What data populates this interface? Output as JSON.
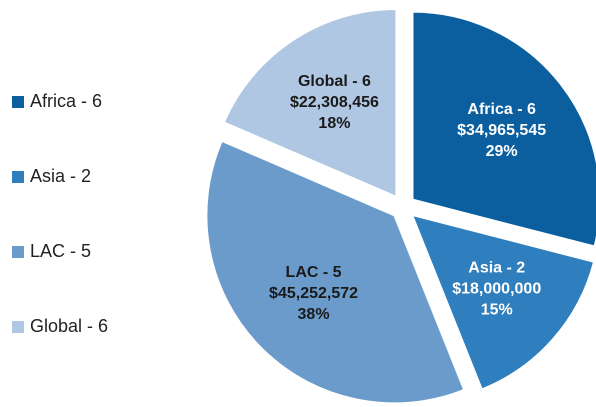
{
  "chart_data": {
    "type": "pie",
    "categories": [
      "Africa - 6",
      "Asia - 2",
      "LAC - 5",
      "Global - 6"
    ],
    "values": [
      34965545,
      18000000,
      45252572,
      22308456
    ],
    "value_labels": [
      "$34,965,545",
      "$18,000,000",
      "$45,252,572",
      "$22,308,456"
    ],
    "percentage_labels": [
      "29%",
      "15%",
      "38%",
      "18%"
    ],
    "colors": [
      "#0b5f9f",
      "#2f7ebd",
      "#6b9bca",
      "#afc7e3"
    ],
    "legend": "left"
  }
}
